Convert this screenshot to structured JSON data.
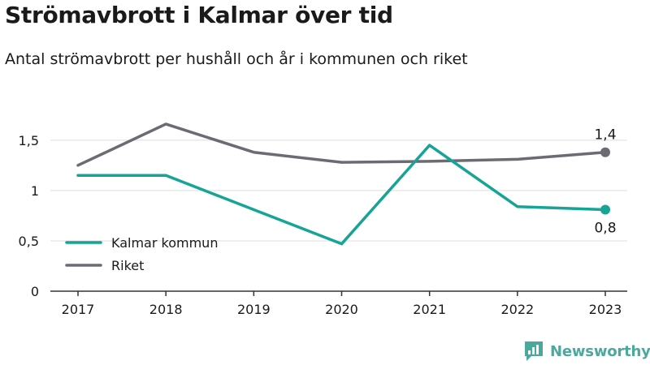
{
  "title": "Strömavbrott i Kalmar över tid",
  "subtitle": "Antal strömavbrott per hushåll och år i kommunen och riket",
  "brand": "Newsworthy",
  "colors": {
    "kalmar": "#17a497",
    "riket": "#6b6b73",
    "grid": "#dddddd",
    "axis": "#333333",
    "text": "#1a1a1a",
    "brand": "#4aa99e"
  },
  "chart_data": {
    "type": "line",
    "x": [
      "2017",
      "2018",
      "2019",
      "2020",
      "2021",
      "2022",
      "2023"
    ],
    "ylim": [
      0,
      1.7
    ],
    "yticks": [
      0,
      0.5,
      1,
      1.5
    ],
    "ytick_labels": [
      "0",
      "0,5",
      "1",
      "1,5"
    ],
    "grid": true,
    "legend_position": "bottom-left",
    "series": [
      {
        "name": "Kalmar kommun",
        "color": "#17a497",
        "values": [
          1.15,
          1.15,
          0.81,
          0.47,
          1.45,
          0.84,
          0.81
        ],
        "end_label": "0,8"
      },
      {
        "name": "Riket",
        "color": "#6b6b73",
        "values": [
          1.25,
          1.66,
          1.38,
          1.28,
          1.29,
          1.31,
          1.38
        ],
        "end_label": "1,4"
      }
    ]
  }
}
